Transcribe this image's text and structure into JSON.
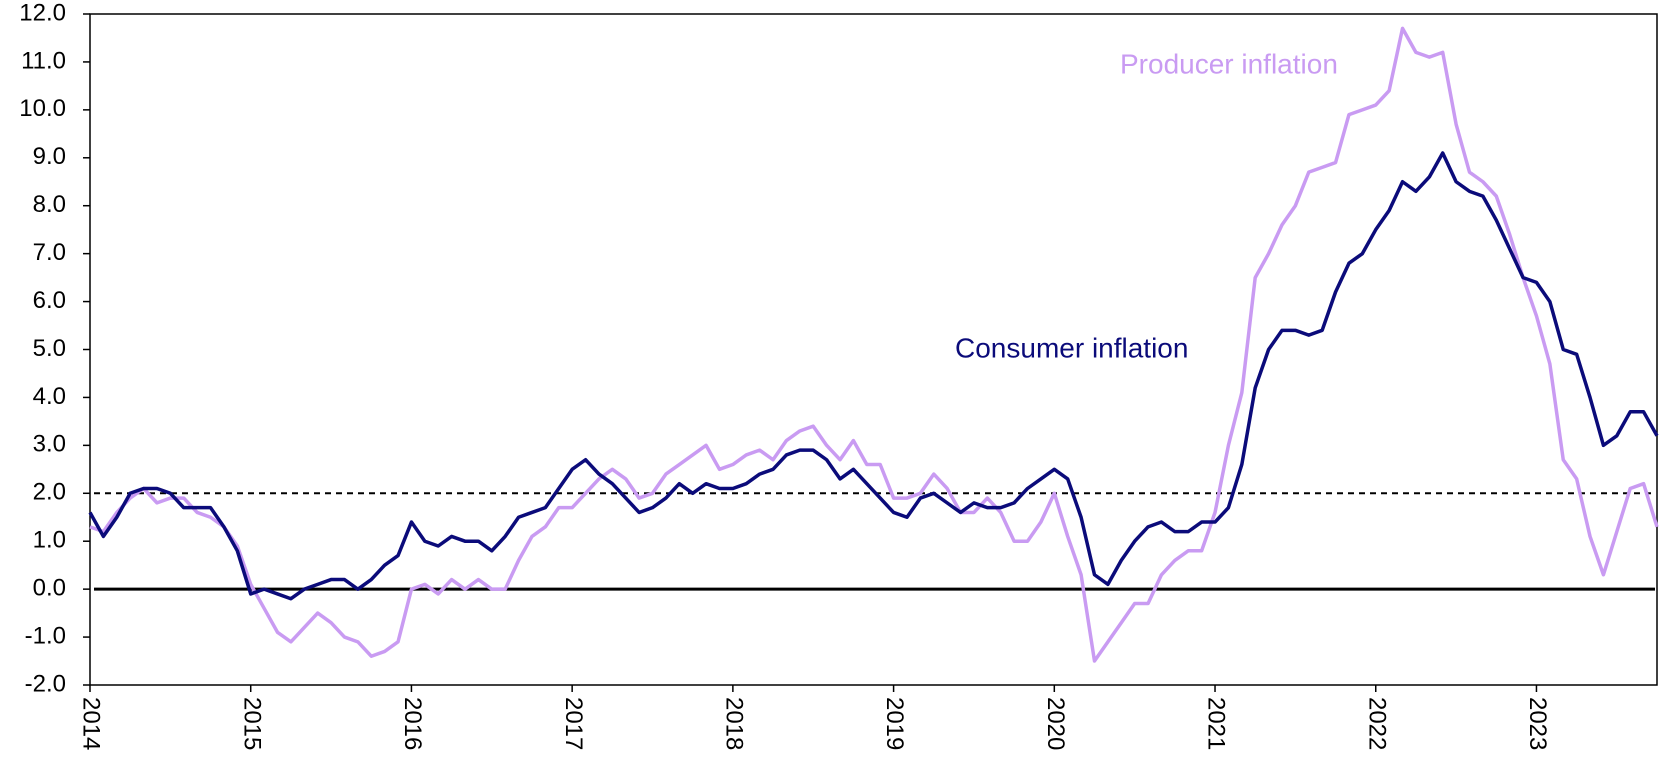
{
  "chart_data": {
    "type": "line",
    "categories": [
      "2014",
      null,
      null,
      null,
      null,
      null,
      null,
      null,
      null,
      null,
      null,
      null,
      "2015",
      null,
      null,
      null,
      null,
      null,
      null,
      null,
      null,
      null,
      null,
      null,
      "2016",
      null,
      null,
      null,
      null,
      null,
      null,
      null,
      null,
      null,
      null,
      null,
      "2017",
      null,
      null,
      null,
      null,
      null,
      null,
      null,
      null,
      null,
      null,
      null,
      "2018",
      null,
      null,
      null,
      null,
      null,
      null,
      null,
      null,
      null,
      null,
      null,
      "2019",
      null,
      null,
      null,
      null,
      null,
      null,
      null,
      null,
      null,
      null,
      null,
      "2020",
      null,
      null,
      null,
      null,
      null,
      null,
      null,
      null,
      null,
      null,
      null,
      "2021",
      null,
      null,
      null,
      null,
      null,
      null,
      null,
      null,
      null,
      null,
      null,
      "2022",
      null,
      null,
      null,
      null,
      null,
      null,
      null,
      null,
      null,
      null,
      null,
      "2023",
      null,
      null,
      null,
      null,
      null,
      null,
      null,
      null,
      null
    ],
    "series": [
      {
        "name": "Producer inflation",
        "color": "#c99bf2",
        "values": [
          1.3,
          1.2,
          1.6,
          1.9,
          2.1,
          1.8,
          1.9,
          1.9,
          1.6,
          1.5,
          1.3,
          0.9,
          0.1,
          -0.4,
          -0.9,
          -1.1,
          -0.8,
          -0.5,
          -0.7,
          -1.0,
          -1.1,
          -1.4,
          -1.3,
          -1.1,
          0.0,
          0.1,
          -0.1,
          0.2,
          0.0,
          0.2,
          0.0,
          0.0,
          0.6,
          1.1,
          1.3,
          1.7,
          1.7,
          2.0,
          2.3,
          2.5,
          2.3,
          1.9,
          2.0,
          2.4,
          2.6,
          2.8,
          3.0,
          2.5,
          2.6,
          2.8,
          2.9,
          2.7,
          3.1,
          3.3,
          3.4,
          3.0,
          2.7,
          3.1,
          2.6,
          2.6,
          1.9,
          1.9,
          2.0,
          2.4,
          2.1,
          1.6,
          1.6,
          1.9,
          1.6,
          1.0,
          1.0,
          1.4,
          2.0,
          1.1,
          0.3,
          -1.5,
          -1.1,
          -0.7,
          -0.3,
          -0.3,
          0.3,
          0.6,
          0.8,
          0.8,
          1.6,
          3.0,
          4.1,
          6.5,
          7.0,
          7.6,
          8.0,
          8.7,
          8.8,
          8.9,
          9.9,
          10.0,
          10.1,
          10.4,
          11.7,
          11.2,
          11.1,
          11.2,
          9.7,
          8.7,
          8.5,
          8.2,
          7.4,
          6.5,
          5.7,
          4.7,
          2.7,
          2.3,
          1.1,
          0.3,
          1.2,
          2.1,
          2.2,
          1.3
        ]
      },
      {
        "name": "Consumer inflation",
        "color": "#0b0b7a",
        "values": [
          1.6,
          1.1,
          1.5,
          2.0,
          2.1,
          2.1,
          2.0,
          1.7,
          1.7,
          1.7,
          1.3,
          0.8,
          -0.1,
          0.0,
          -0.1,
          -0.2,
          0.0,
          0.1,
          0.2,
          0.2,
          0.0,
          0.2,
          0.5,
          0.7,
          1.4,
          1.0,
          0.9,
          1.1,
          1.0,
          1.0,
          0.8,
          1.1,
          1.5,
          1.6,
          1.7,
          2.1,
          2.5,
          2.7,
          2.4,
          2.2,
          1.9,
          1.6,
          1.7,
          1.9,
          2.2,
          2.0,
          2.2,
          2.1,
          2.1,
          2.2,
          2.4,
          2.5,
          2.8,
          2.9,
          2.9,
          2.7,
          2.3,
          2.5,
          2.2,
          1.9,
          1.6,
          1.5,
          1.9,
          2.0,
          1.8,
          1.6,
          1.8,
          1.7,
          1.7,
          1.8,
          2.1,
          2.3,
          2.5,
          2.3,
          1.5,
          0.3,
          0.1,
          0.6,
          1.0,
          1.3,
          1.4,
          1.2,
          1.2,
          1.4,
          1.4,
          1.7,
          2.6,
          4.2,
          5.0,
          5.4,
          5.4,
          5.3,
          5.4,
          6.2,
          6.8,
          7.0,
          7.5,
          7.9,
          8.5,
          8.3,
          8.6,
          9.1,
          8.5,
          8.3,
          8.2,
          7.7,
          7.1,
          6.5,
          6.4,
          6.0,
          5.0,
          4.9,
          4.0,
          3.0,
          3.2,
          3.7,
          3.7,
          3.2
        ]
      }
    ],
    "ylim": [
      -2,
      12
    ],
    "yticks": [
      {
        "value": -2,
        "label": "-2.0"
      },
      {
        "value": -1,
        "label": "-1.0"
      },
      {
        "value": 0,
        "label": "0.0"
      },
      {
        "value": 1,
        "label": "1.0"
      },
      {
        "value": 2,
        "label": "2.0"
      },
      {
        "value": 3,
        "label": "3.0"
      },
      {
        "value": 4,
        "label": "4.0"
      },
      {
        "value": 5,
        "label": "5.0"
      },
      {
        "value": 6,
        "label": "6.0"
      },
      {
        "value": 7,
        "label": "7.0"
      },
      {
        "value": 8,
        "label": "8.0"
      },
      {
        "value": 9,
        "label": "9.0"
      },
      {
        "value": 10,
        "label": "10.0"
      },
      {
        "value": 11,
        "label": "11.0"
      },
      {
        "value": 12,
        "label": "12.0"
      }
    ],
    "reference_lines": [
      {
        "value": 0,
        "style": "solid"
      },
      {
        "value": 2,
        "style": "dashed"
      }
    ],
    "grid": false
  }
}
